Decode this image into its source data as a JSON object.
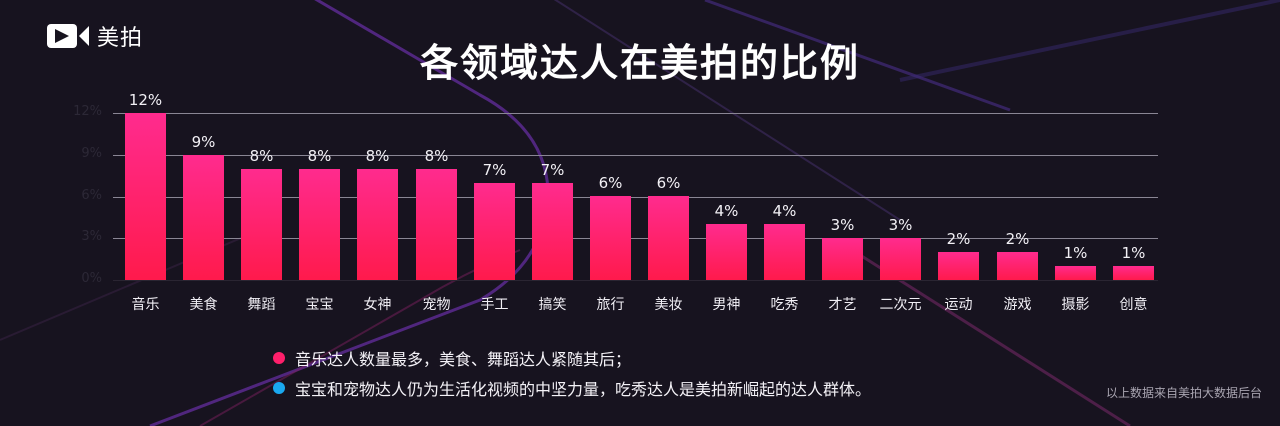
{
  "brand": {
    "logo_text": "美拍",
    "logo_icon": "meipai-camera-icon"
  },
  "title": "各领域达人在美拍的比例",
  "chart_data": {
    "type": "bar",
    "title": "各领域达人在美拍的比例",
    "xlabel": "",
    "ylabel": "",
    "ylim": [
      0,
      12
    ],
    "yticks": [
      "0%",
      "3%",
      "6%",
      "9%",
      "12%"
    ],
    "grid": true,
    "legend": "none",
    "categories": [
      "音乐",
      "美食",
      "舞蹈",
      "宝宝",
      "女神",
      "宠物",
      "手工",
      "搞笑",
      "旅行",
      "美妆",
      "男神",
      "吃秀",
      "才艺",
      "二次元",
      "运动",
      "游戏",
      "摄影",
      "创意"
    ],
    "values": [
      12,
      9,
      8,
      8,
      8,
      8,
      7,
      7,
      6,
      6,
      4,
      4,
      3,
      3,
      2,
      2,
      1,
      1
    ],
    "value_labels": [
      "12%",
      "9%",
      "8%",
      "8%",
      "8%",
      "8%",
      "7%",
      "7%",
      "6%",
      "6%",
      "4%",
      "4%",
      "3%",
      "3%",
      "2%",
      "2%",
      "1%",
      "1%"
    ],
    "bar_color_top": "#ff2b8e",
    "bar_color_bottom": "#ff1a4c"
  },
  "notes": [
    {
      "text": "音乐达人数量最多，美食、舞蹈达人紧随其后；",
      "dot_color": "#ff1f6b"
    },
    {
      "text": "宝宝和宠物达人仍为生活化视频的中坚力量，吃秀达人是美拍新崛起的达人群体。",
      "dot_color": "#1aa8f0"
    }
  ],
  "source": "以上数据来自美拍大数据后台",
  "colors": {
    "background": "#17131f",
    "accent_pink": "#ff2370",
    "accent_blue": "#1aa8f0",
    "deco_purple": "#6a2bb0"
  }
}
